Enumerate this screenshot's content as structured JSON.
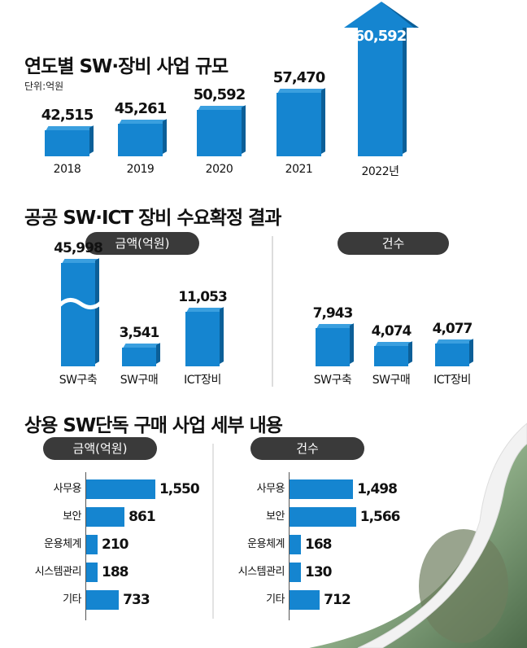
{
  "colors": {
    "bar": "#1585d0",
    "bar_dark": "#0c5f98",
    "pill": "#3a3a3a"
  },
  "chart_data": [
    {
      "type": "bar",
      "title": "연도별 SW·장비 사업 규모",
      "unit": "단위:억원",
      "categories": [
        "2018",
        "2019",
        "2020",
        "2021",
        "2022년"
      ],
      "values": [
        42515,
        45261,
        50592,
        57470,
        60592
      ],
      "value_labels": [
        "42,515",
        "45,261",
        "50,592",
        "57,470",
        "60,592"
      ]
    },
    {
      "type": "bar",
      "title": "공공 SW·ICT 장비 수요확정 결과",
      "panels": [
        {
          "header": "금액(억원)",
          "categories": [
            "SW구축",
            "SW구매",
            "ICT장비"
          ],
          "values": [
            45998,
            3541,
            11053
          ],
          "value_labels": [
            "45,998",
            "3,541",
            "11,053"
          ],
          "axis_break": "SW구축"
        },
        {
          "header": "건수",
          "categories": [
            "SW구축",
            "SW구매",
            "ICT장비"
          ],
          "values": [
            7943,
            4074,
            4077
          ],
          "value_labels": [
            "7,943",
            "4,074",
            "4,077"
          ]
        }
      ]
    },
    {
      "type": "bar",
      "orientation": "horizontal",
      "title": "상용 SW단독 구매 사업 세부 내용",
      "panels": [
        {
          "header": "금액(억원)",
          "categories": [
            "사무용",
            "보안",
            "운용체계",
            "시스템관리",
            "기타"
          ],
          "values": [
            1550,
            861,
            210,
            188,
            733
          ],
          "value_labels": [
            "1,550",
            "861",
            "210",
            "188",
            "733"
          ]
        },
        {
          "header": "건수",
          "categories": [
            "사무용",
            "보안",
            "운용체계",
            "시스템관리",
            "기타"
          ],
          "values": [
            1498,
            1566,
            168,
            130,
            712
          ],
          "value_labels": [
            "1,498",
            "1,566",
            "168",
            "130",
            "712"
          ]
        }
      ]
    }
  ]
}
